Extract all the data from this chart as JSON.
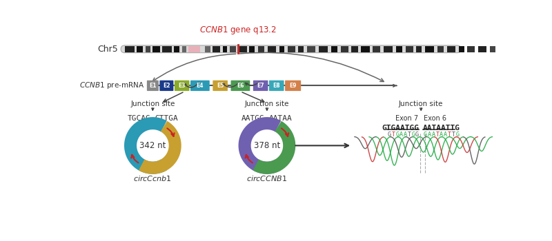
{
  "chr_label": "Chr5",
  "gene_label_italic": "CCNB1",
  "gene_label_rest": " gene q13.2",
  "premrna_label_italic": "CCNB1",
  "premrna_label_rest": " pre-mRNA",
  "exons": [
    "E1",
    "E2",
    "E3",
    "E4",
    "E5",
    "E6",
    "E7",
    "E8",
    "E9"
  ],
  "exon_colors": [
    "#888888",
    "#1a3a8a",
    "#8aab2a",
    "#2a9ab5",
    "#c8a030",
    "#4a9a50",
    "#7060b0",
    "#38a8b8",
    "#d4804a"
  ],
  "circ1_label": "circCcnb1",
  "circ1_nt": "342 nt",
  "circ1_seq_left": "TGCAG",
  "circ1_seq_right": "GTTGA",
  "circ1_color_left": "#2a9ab5",
  "circ1_color_right": "#c8a030",
  "circ2_label": "circCCNB1",
  "circ2_nt": "378 nt",
  "circ2_seq_left": "AATGG",
  "circ2_seq_right": "AATAA",
  "circ2_color_left": "#7060b0",
  "circ2_color_right": "#4a9a50",
  "junction_label": "Junction site",
  "seq_bold1": "GTGAATGG",
  "seq_bold2": "AATAATTG",
  "exon7_label": "Exon 7",
  "exon6_label": "Exon 6",
  "colored_nuc": [
    [
      "G",
      "#555555"
    ],
    [
      "T",
      "#cc3333"
    ],
    [
      "G",
      "#22aa44"
    ],
    [
      "A",
      "#22aa44"
    ],
    [
      "A",
      "#22aa44"
    ],
    [
      "T",
      "#555555"
    ],
    [
      "G",
      "#22aa44"
    ],
    [
      "G",
      "#555555"
    ],
    [
      "G",
      "#22aa44"
    ],
    [
      "A",
      "#22aa44"
    ],
    [
      "A",
      "#22aa44"
    ],
    [
      "T",
      "#cc3333"
    ],
    [
      "A",
      "#22aa44"
    ],
    [
      "A",
      "#22aa44"
    ],
    [
      "T",
      "#cc3333"
    ],
    [
      "T",
      "#555555"
    ],
    [
      "G",
      "#22aa44"
    ]
  ],
  "bg": "#ffffff",
  "dark": "#444444",
  "red": "#cc2222",
  "gray_arrow": "#666666"
}
